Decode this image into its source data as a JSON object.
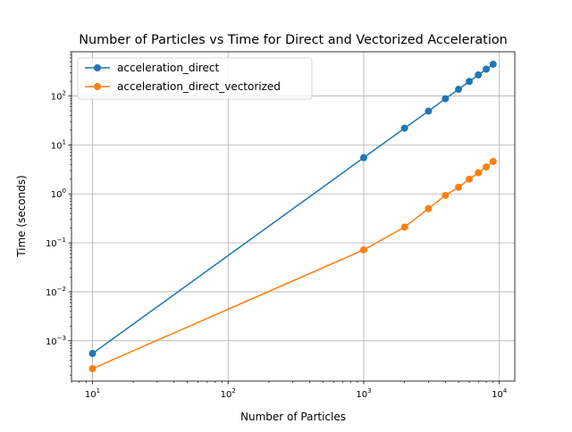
{
  "chart_data": {
    "type": "line",
    "title": "Number of Particles vs Time for Direct and Vectorized Acceleration",
    "xlabel": "Number of Particles",
    "ylabel": "Time (seconds)",
    "xscale": "log",
    "yscale": "log",
    "xlim": [
      7,
      13000
    ],
    "ylim": [
      0.00015,
      800
    ],
    "grid": true,
    "legend_position": "upper-left",
    "x_ticks": [
      {
        "value": 10,
        "base": "10",
        "exp": "1"
      },
      {
        "value": 100,
        "base": "10",
        "exp": "2"
      },
      {
        "value": 1000,
        "base": "10",
        "exp": "3"
      },
      {
        "value": 10000,
        "base": "10",
        "exp": "4"
      }
    ],
    "y_ticks": [
      {
        "value": 0.001,
        "base": "10",
        "exp": "−3"
      },
      {
        "value": 0.01,
        "base": "10",
        "exp": "−2"
      },
      {
        "value": 0.1,
        "base": "10",
        "exp": "−1"
      },
      {
        "value": 1,
        "base": "10",
        "exp": "0"
      },
      {
        "value": 10,
        "base": "10",
        "exp": "1"
      },
      {
        "value": 100,
        "base": "10",
        "exp": "2"
      }
    ],
    "x": [
      10,
      1000,
      2000,
      3000,
      4000,
      5000,
      6000,
      7000,
      8000,
      9000
    ],
    "series": [
      {
        "name": "acceleration_direct",
        "color": "#1f77b4",
        "values": [
          0.00055,
          5.5,
          22,
          49,
          88,
          137,
          198,
          270,
          352,
          445
        ]
      },
      {
        "name": "acceleration_direct_vectorized",
        "color": "#ff7f0e",
        "values": [
          0.00027,
          0.072,
          0.21,
          0.5,
          0.93,
          1.37,
          2.0,
          2.7,
          3.55,
          4.6
        ]
      }
    ]
  }
}
